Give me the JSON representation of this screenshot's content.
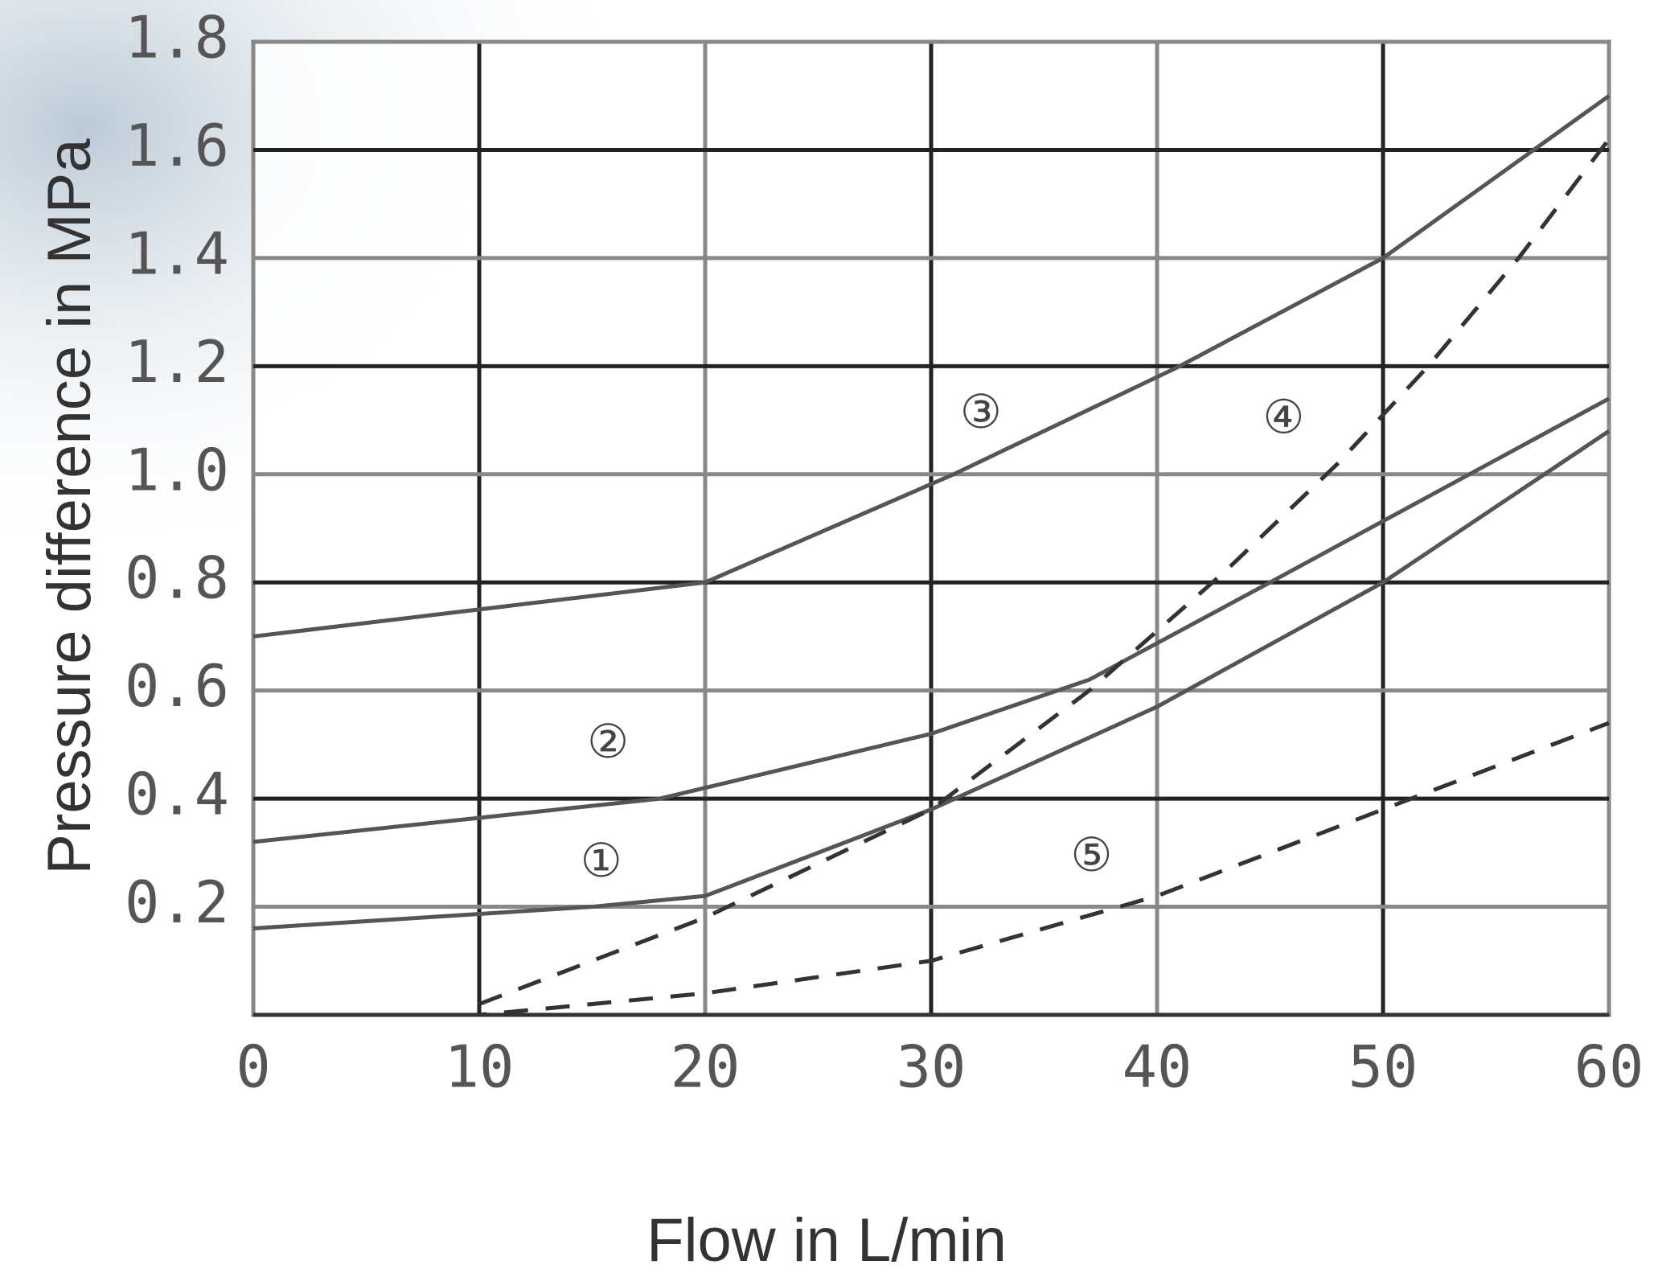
{
  "chart_data": {
    "type": "line",
    "xlabel": "Flow in L/min",
    "ylabel": "Pressure difference in MPa",
    "xlim": [
      0,
      60
    ],
    "ylim": [
      0,
      1.8
    ],
    "xticks": [
      0,
      10,
      20,
      30,
      40,
      50,
      60
    ],
    "yticks": [
      0.2,
      0.4,
      0.6,
      0.8,
      {
        "value": 1,
        "label": "1.0"
      },
      1.2,
      1.4,
      1.6,
      1.8
    ],
    "grid": true,
    "series": [
      {
        "color": "#555555",
        "dashed": false,
        "x": [
          0,
          15,
          20,
          30,
          40,
          50,
          60
        ],
        "values": [
          0.16,
          0.2,
          0.22,
          0.38,
          0.57,
          0.8,
          1.08
        ]
      },
      {
        "color": "#555555",
        "dashed": false,
        "x": [
          0,
          18,
          30,
          37,
          45,
          60
        ],
        "values": [
          0.32,
          0.4,
          0.52,
          0.62,
          0.8,
          1.14
        ]
      },
      {
        "color": "#555555",
        "dashed": false,
        "x": [
          0,
          20,
          31,
          41,
          50,
          60
        ],
        "values": [
          0.7,
          0.8,
          1.0,
          1.2,
          1.4,
          1.7
        ]
      },
      {
        "color": "#333333",
        "dashed": true,
        "x": [
          10,
          20,
          30,
          37,
          43,
          48,
          52,
          56,
          60
        ],
        "values": [
          0.02,
          0.18,
          0.38,
          0.6,
          0.82,
          1.02,
          1.2,
          1.4,
          1.62
        ]
      },
      {
        "color": "#333333",
        "dashed": true,
        "x": [
          0,
          10,
          20,
          30,
          40,
          50,
          60
        ],
        "values": [
          0,
          0,
          0.04,
          0.1,
          0.22,
          0.38,
          0.54
        ]
      }
    ],
    "annotations": [
      {
        "text": "①",
        "x": 15.4,
        "y": 0.28
      },
      {
        "text": "②",
        "x": 15.7,
        "y": 0.5
      },
      {
        "text": "③",
        "x": 32.2,
        "y": 1.11
      },
      {
        "text": "④",
        "x": 45.6,
        "y": 1.1
      },
      {
        "text": "⑤",
        "x": 37.1,
        "y": 0.29
      }
    ]
  }
}
